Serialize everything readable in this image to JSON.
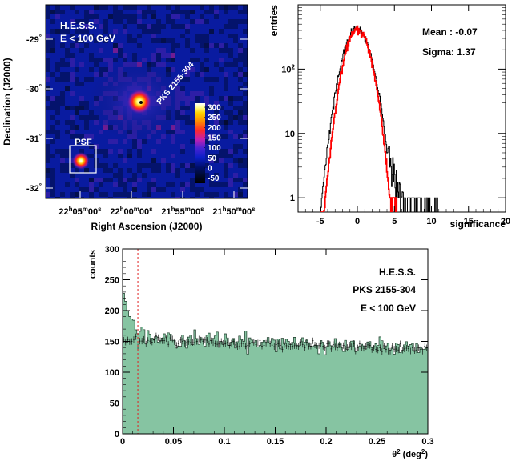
{
  "chart_data": [
    {
      "type": "heatmap",
      "title": "",
      "overlay_lines": [
        "H.E.S.S.",
        "E < 100 GeV"
      ],
      "xlabel": "Right Ascension (J2000)",
      "ylabel": "Declination (J2000)",
      "x_ticks": [
        {
          "h": "22",
          "m": "05",
          "s": "00"
        },
        {
          "h": "22",
          "m": "00",
          "s": "00"
        },
        {
          "h": "21",
          "m": "55",
          "s": "00"
        },
        {
          "h": "21",
          "m": "50",
          "s": "00"
        }
      ],
      "y_ticks": [
        "-29",
        "-30",
        "-31",
        "-32"
      ],
      "source_label": "PKS 2155-304",
      "psf_label": "PSF",
      "colorbar_ticks": [
        "300",
        "250",
        "200",
        "150",
        "100",
        "50",
        "0",
        "-50"
      ],
      "colorbar_range": [
        -75,
        320
      ],
      "colormap": [
        "#000000",
        "#000a30",
        "#000f6a",
        "#0a1ec8",
        "#4a22d4",
        "#c41fb0",
        "#ff2a2a",
        "#ff8a00",
        "#ffd400",
        "#ffff9a",
        "#ffffff"
      ],
      "background_color": "#0a1a70"
    },
    {
      "type": "histogram",
      "xlabel": "significance",
      "ylabel": "entries",
      "xlim": [
        -8,
        20
      ],
      "ylim": [
        0.6,
        1000
      ],
      "log_y": true,
      "x_ticks": [
        "-5",
        "0",
        "5",
        "10",
        "15",
        "20"
      ],
      "y_ticks": [
        "1",
        "10",
        "10^2"
      ],
      "stats": [
        "Mean : -0.07",
        "Sigma: 1.37"
      ],
      "series": [
        {
          "color": "#000000",
          "mean": -0.07,
          "sigma": 1.37,
          "peak": 420,
          "tail_to": 11
        },
        {
          "color": "#ff0000",
          "mean": 0.0,
          "sigma": 1.25,
          "peak": 410,
          "tail_to": 5.4
        }
      ]
    },
    {
      "type": "histogram",
      "xlabel_main": "θ",
      "xlabel_sup": "2",
      "xlabel_unit": " (deg",
      "xlabel_unit_sup": "2",
      "xlabel_end": ")",
      "ylabel": "counts",
      "xlim": [
        0,
        0.3
      ],
      "ylim": [
        0,
        300
      ],
      "x_ticks": [
        "0",
        "0.05",
        "0.1",
        "0.15",
        "0.2",
        "0.25",
        "0.3"
      ],
      "y_ticks": [
        "0",
        "50",
        "100",
        "150",
        "200",
        "250",
        "300"
      ],
      "annotations": [
        "H.E.S.S.",
        "PKS 2155-304",
        "E < 100 GeV"
      ],
      "cut_line": 0.015,
      "fill_color": "#86c4a2",
      "cut_color": "#e02020",
      "on_counts_model": {
        "baseline": 158,
        "slope_per_deg2": -65,
        "signal_peak": 95,
        "signal_width": 0.007
      },
      "off_counts_model": {
        "baseline": 153,
        "slope_per_deg2": -55
      }
    }
  ]
}
